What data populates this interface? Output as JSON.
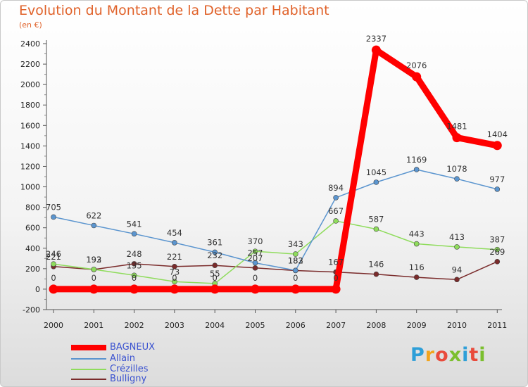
{
  "header": {
    "title": "Evolution du Montant de la Dette par Habitant",
    "subtitle": "(en €)"
  },
  "logo": {
    "text": "Proxiti",
    "colors": [
      "#2e9fd8",
      "#f2a51f",
      "#e94b3c",
      "#7bbf2e",
      "#2e9fd8",
      "#e94b3c",
      "#7bbf2e"
    ]
  },
  "chart_data": {
    "type": "line",
    "x": [
      "2000",
      "2001",
      "2002",
      "2003",
      "2004",
      "2005",
      "2006",
      "2007",
      "2008",
      "2009",
      "2010",
      "2011"
    ],
    "ylim": [
      -200,
      2400
    ],
    "yticks": [
      -200,
      0,
      200,
      400,
      600,
      800,
      1000,
      1200,
      1400,
      1600,
      1800,
      2000,
      2200,
      2400
    ],
    "grid": false,
    "legend": "bottom-left",
    "series": [
      {
        "name": "BAGNEUX",
        "color": "#ff0000",
        "values": [
          0,
          0,
          0,
          0,
          0,
          0,
          0,
          0,
          2337,
          2076,
          1481,
          1404
        ],
        "labels": [
          "0",
          "0",
          "0",
          "0",
          "0",
          "0",
          "0",
          "0",
          "2337",
          "2076",
          "1481",
          "1404"
        ]
      },
      {
        "name": "Allain",
        "color": "#5b95cf",
        "values": [
          705,
          622,
          541,
          454,
          361,
          257,
          183,
          894,
          1045,
          1169,
          1078,
          977
        ],
        "labels": [
          "705",
          "622",
          "541",
          "454",
          "361",
          "257",
          "183",
          "894",
          "1045",
          "1169",
          "1078",
          "977"
        ]
      },
      {
        "name": "Crézilles",
        "color": "#8fdc5c",
        "values": [
          246,
          193,
          135,
          73,
          55,
          370,
          343,
          667,
          587,
          443,
          413,
          387
        ],
        "labels": [
          "246",
          "193",
          "135",
          "73",
          "55",
          "370",
          "343",
          "667",
          "587",
          "443",
          "413",
          "387"
        ]
      },
      {
        "name": "Bulligny",
        "color": "#7a2b2b",
        "values": [
          221,
          192,
          248,
          221,
          232,
          207,
          182,
          167,
          146,
          116,
          94,
          269
        ],
        "labels": [
          "221",
          "192",
          "248",
          "221",
          "232",
          "207",
          "182",
          "167",
          "146",
          "116",
          "94",
          "269"
        ]
      }
    ]
  }
}
